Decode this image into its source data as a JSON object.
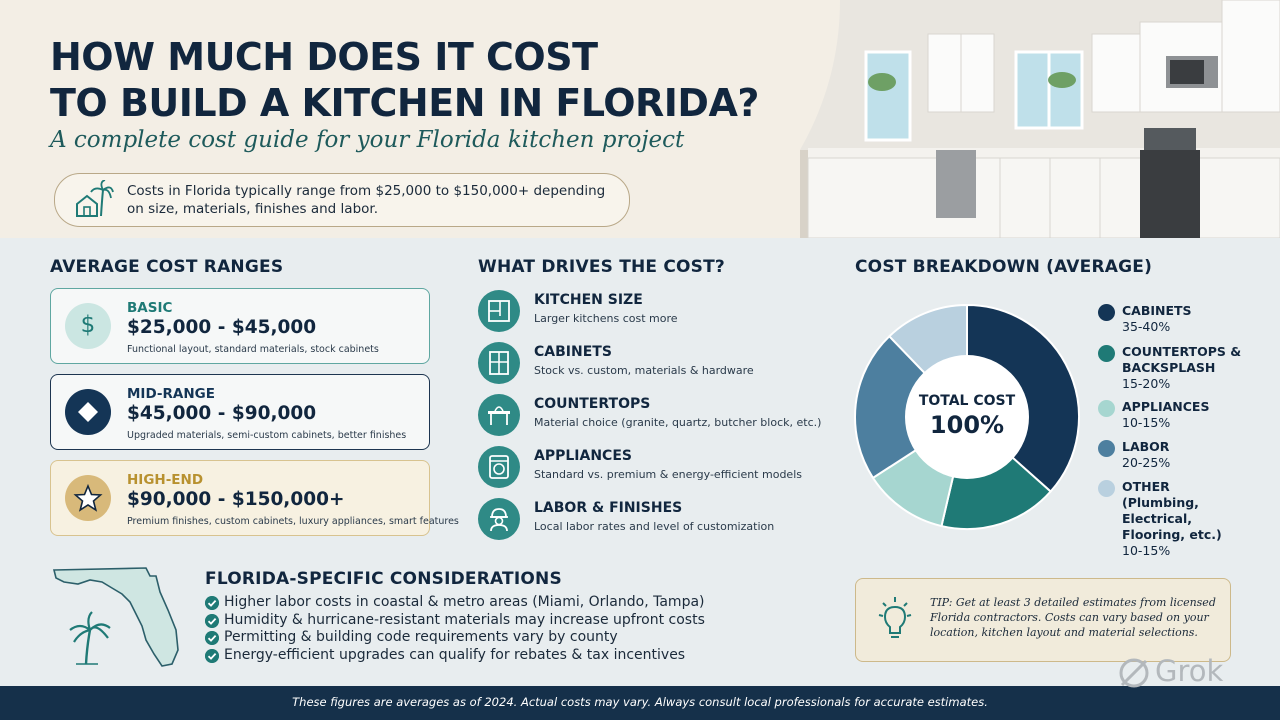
{
  "header": {
    "title_line1": "HOW MUCH DOES IT COST",
    "title_line2": "TO BUILD A KITCHEN IN FLORIDA?",
    "subtitle": "A complete cost guide for your Florida kitchen project",
    "intro": "Costs in Florida typically range from $25,000 to $150,000+ depending on size, materials, finishes and labor."
  },
  "cost_ranges": {
    "heading": "AVERAGE COST RANGES",
    "tiers": [
      {
        "tier": "BASIC",
        "range": "$25,000 - $45,000",
        "desc": "Functional layout, standard materials, stock cabinets"
      },
      {
        "tier": "MID-RANGE",
        "range": "$45,000 - $90,000",
        "desc": "Upgraded materials, semi-custom cabinets, better finishes"
      },
      {
        "tier": "HIGH-END",
        "range": "$90,000 - $150,000+",
        "desc": "Premium finishes, custom cabinets, luxury appliances, smart features"
      }
    ]
  },
  "drivers": {
    "heading": "WHAT DRIVES THE COST?",
    "items": [
      {
        "title": "KITCHEN SIZE",
        "desc": "Larger kitchens cost more",
        "icon": "floorplan-icon"
      },
      {
        "title": "CABINETS",
        "desc": "Stock vs. custom, materials & hardware",
        "icon": "cabinet-icon"
      },
      {
        "title": "COUNTERTOPS",
        "desc": "Material choice (granite, quartz, butcher block, etc.)",
        "icon": "countertop-icon"
      },
      {
        "title": "APPLIANCES",
        "desc": "Standard vs. premium & energy-efficient models",
        "icon": "appliance-icon"
      },
      {
        "title": "LABOR & FINISHES",
        "desc": "Local labor rates and level of customization",
        "icon": "worker-icon"
      }
    ]
  },
  "breakdown": {
    "heading": "COST BREAKDOWN (AVERAGE)",
    "center_label": "TOTAL COST",
    "center_value": "100%"
  },
  "chart_data": {
    "type": "pie",
    "categories": [
      "CABINETS",
      "COUNTERTOPS & BACKSPLASH",
      "APPLIANCES",
      "LABOR",
      "OTHER (Plumbing, Electrical, Flooring, etc.)"
    ],
    "labels": [
      "35-40%",
      "15-20%",
      "10-15%",
      "20-25%",
      "10-15%"
    ],
    "values": [
      37.5,
      17.5,
      12.5,
      22.5,
      12.5
    ],
    "colors": [
      "#143556",
      "#1f7a76",
      "#a6d6d0",
      "#4d7f9f",
      "#b9d0df"
    ],
    "legend_placement": "right"
  },
  "florida": {
    "heading": "FLORIDA-SPECIFIC CONSIDERATIONS",
    "items": [
      "Higher labor costs in coastal & metro areas (Miami, Orlando, Tampa)",
      "Humidity & hurricane-resistant materials may increase upfront costs",
      "Permitting & building code requirements vary by county",
      "Energy-efficient upgrades can qualify for rebates & tax incentives"
    ]
  },
  "tip": {
    "text": "TIP: Get at least 3 detailed estimates from licensed Florida contractors. Costs can vary based on your location, kitchen layout and material selections."
  },
  "footer": {
    "text": "These figures are averages as of 2024. Actual costs may vary. Always consult local professionals for accurate estimates."
  },
  "watermark": {
    "text": "Grok"
  },
  "colors": {
    "navy": "#11263e",
    "teal": "#1f7a76",
    "gold": "#b8912f",
    "footer": "#15304a"
  }
}
